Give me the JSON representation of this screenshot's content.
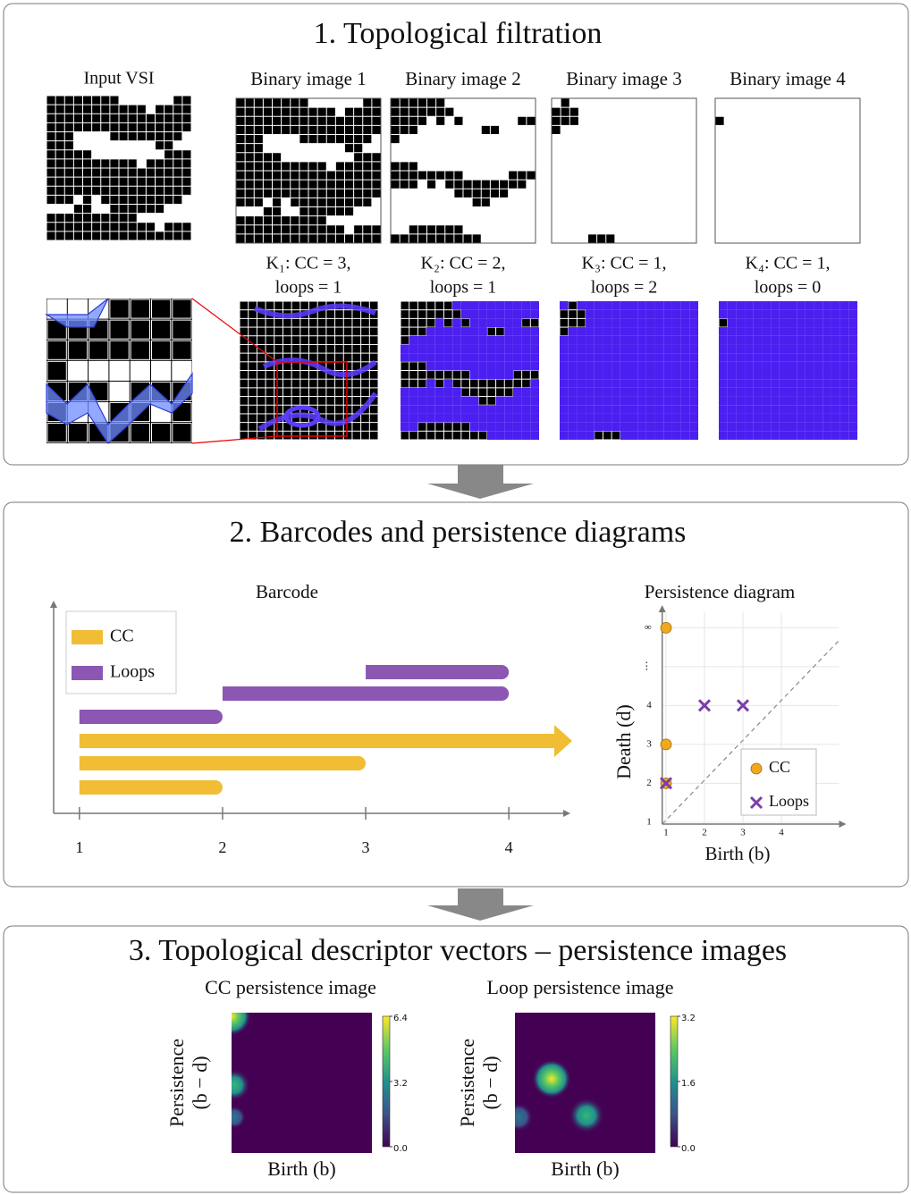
{
  "section1": {
    "title": "1.  Topological filtration",
    "input_label": "Input VSI",
    "binary_labels": [
      "Binary image 1",
      "Binary image 2",
      "Binary image 3",
      "Binary image 4"
    ],
    "complexes": [
      {
        "line1": "K₁: CC = 3,",
        "line2": "loops = 1"
      },
      {
        "line1": "K₂: CC = 2,",
        "line2": "loops = 1"
      },
      {
        "line1": "K₃: CC = 1,",
        "line2": "loops = 2"
      },
      {
        "line1": "K₄: CC = 1,",
        "line2": "loops = 0"
      }
    ]
  },
  "section2": {
    "title": "2. Barcodes and persistence diagrams"
  },
  "chart_data": [
    {
      "type": "barcode",
      "title": "Barcode",
      "series": [
        {
          "name": "CC",
          "color": "#f0bd35",
          "births": [
            1,
            1,
            1
          ],
          "deaths": [
            2,
            3,
            null
          ]
        },
        {
          "name": "Loops",
          "color": "#8b57b3",
          "births": [
            1,
            2,
            3
          ],
          "deaths": [
            2,
            4,
            4
          ]
        }
      ],
      "xlim": [
        0.82,
        4.38
      ],
      "xticks": [
        1,
        2,
        3,
        4
      ],
      "legend": "upper left"
    },
    {
      "type": "scatter",
      "title": "Persistence diagram",
      "x_label": "Birth (b)",
      "y_label": "Death (d)",
      "series": [
        {
          "name": "CC",
          "color": "#f0a820",
          "marker": "circle",
          "x": [
            1,
            1,
            1
          ],
          "values": [
            6,
            3,
            2
          ]
        },
        {
          "name": "Loops",
          "color": "#7b3fa8",
          "marker": "x",
          "x": [
            1,
            2,
            3
          ],
          "values": [
            2,
            4,
            4
          ]
        }
      ],
      "xlim": [
        0.9,
        5.5
      ],
      "xticks": [
        1,
        2,
        3,
        4
      ],
      "ylim": [
        0.95,
        6.4
      ],
      "yticks": [
        1,
        2,
        3,
        4,
        {
          "value": 5,
          "label": "⋮"
        },
        {
          "value": 6,
          "label": "∞"
        }
      ],
      "grid": true,
      "legend": "lower right"
    }
  ],
  "section3": {
    "title": "3. Topological descriptor vectors – persistence images",
    "images": [
      {
        "title": "CC persistence image",
        "x_label": "Birth (b)",
        "y_label": [
          "Persistence",
          "(b − d)"
        ],
        "colorbar_ticks": [
          {
            "value": 0,
            "label": "0.0"
          },
          3.2,
          6.4
        ]
      },
      {
        "title": "Loop persistence image",
        "x_label": "Birth (b)",
        "y_label": [
          "Persistence",
          "(b − d)"
        ],
        "colorbar_ticks": [
          {
            "value": 0,
            "label": "0.0"
          },
          1.6,
          3.2
        ]
      }
    ]
  }
}
